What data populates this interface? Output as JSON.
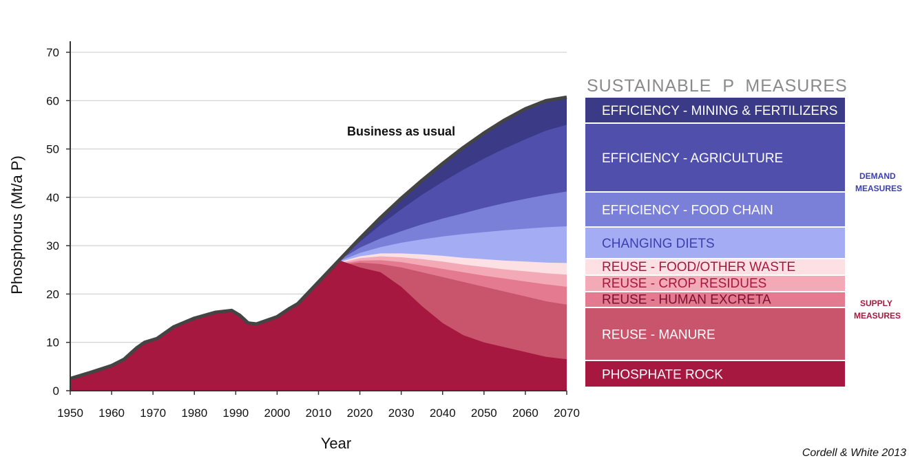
{
  "chart_data": {
    "type": "area",
    "title": "",
    "xlabel": "Year",
    "ylabel": "Phosphorus (Mt/a P)",
    "xlim": [
      1950,
      2070
    ],
    "ylim": [
      0,
      70
    ],
    "x_ticks": [
      1950,
      1960,
      1970,
      1980,
      1990,
      2000,
      2010,
      2020,
      2030,
      2040,
      2050,
      2060,
      2070
    ],
    "y_ticks": [
      0,
      10,
      20,
      30,
      40,
      50,
      60,
      70
    ],
    "grid": "horizontal",
    "annotation": "Business as usual",
    "legend_title": "SUSTAINABLE  P  MEASURES",
    "group_labels": {
      "demand": [
        "DEMAND",
        "MEASURES"
      ],
      "supply": [
        "SUPPLY",
        "MEASURES"
      ]
    },
    "source": "Cordell & White 2013",
    "business_as_usual": {
      "x": [
        1950,
        1955,
        1960,
        1963,
        1966,
        1968,
        1971,
        1975,
        1980,
        1985,
        1989,
        1991,
        1993,
        1995,
        2000,
        2003,
        2005,
        2010,
        2015,
        2020,
        2025,
        2030,
        2035,
        2040,
        2045,
        2050,
        2055,
        2060,
        2065,
        2070
      ],
      "y": [
        2.5,
        3.8,
        5.2,
        6.5,
        8.8,
        10.0,
        10.8,
        13.2,
        15.0,
        16.2,
        16.6,
        15.6,
        14.0,
        13.8,
        15.3,
        17.0,
        18.0,
        22.5,
        27.0,
        31.5,
        35.8,
        39.8,
        43.5,
        47.0,
        50.3,
        53.3,
        56.0,
        58.3,
        60.0,
        60.7
      ]
    },
    "scenario_x": [
      2015,
      2020,
      2025,
      2030,
      2035,
      2040,
      2045,
      2050,
      2055,
      2060,
      2065,
      2070
    ],
    "series": [
      {
        "name": "PHOSPHATE ROCK",
        "color": "#a6183f",
        "text_color": "#ffffff",
        "values": [
          25.5,
          25.5,
          24.5,
          21.5,
          17.5,
          14.0,
          11.5,
          10.0,
          9.0,
          8.0,
          7.0,
          6.5
        ]
      },
      {
        "name": "REUSE - MANURE",
        "color": "#c8556b",
        "text_color": "#ffffff",
        "values": [
          26.0,
          26.5,
          26.2,
          25.5,
          24.5,
          23.5,
          22.5,
          21.5,
          20.5,
          19.5,
          18.5,
          17.8
        ]
      },
      {
        "name": "REUSE - HUMAN EXCRETA",
        "color": "#e47a90",
        "text_color": "#7a1030",
        "values": [
          26.2,
          26.9,
          27.0,
          26.6,
          25.9,
          25.2,
          24.5,
          23.8,
          23.2,
          22.6,
          22.0,
          21.5
        ]
      },
      {
        "name": "REUSE - CROP RESIDUES",
        "color": "#f4a9b6",
        "text_color": "#a6183f",
        "values": [
          26.4,
          27.4,
          27.8,
          27.6,
          27.2,
          26.7,
          26.1,
          25.6,
          25.1,
          24.7,
          24.3,
          24.0
        ]
      },
      {
        "name": "REUSE - FOOD/OTHER WASTE",
        "color": "#fde0e4",
        "text_color": "#a6183f",
        "values": [
          26.6,
          27.8,
          28.4,
          28.4,
          28.2,
          27.9,
          27.5,
          27.2,
          26.9,
          26.7,
          26.5,
          26.4
        ]
      },
      {
        "name": "CHANGING DIETS",
        "color": "#a4acf4",
        "text_color": "#3b3fb0",
        "values": [
          26.8,
          28.5,
          29.7,
          30.6,
          31.3,
          31.9,
          32.4,
          32.8,
          33.2,
          33.5,
          33.8,
          34.0
        ]
      },
      {
        "name": "EFFICIENCY - FOOD CHAIN",
        "color": "#7a80d8",
        "text_color": "#ffffff",
        "values": [
          27.0,
          29.6,
          31.5,
          33.0,
          34.4,
          35.6,
          36.7,
          37.8,
          38.8,
          39.7,
          40.5,
          41.2
        ]
      },
      {
        "name": "EFFICIENCY - AGRICULTURE",
        "color": "#5050ac",
        "text_color": "#ffffff",
        "values": [
          27.0,
          30.8,
          34.3,
          37.5,
          40.5,
          43.2,
          45.7,
          48.0,
          50.1,
          52.0,
          53.8,
          55.0
        ]
      },
      {
        "name": "EFFICIENCY - MINING & FERTILIZERS",
        "color": "#3a3a86",
        "text_color": "#ffffff",
        "values": [
          27.0,
          31.5,
          35.8,
          39.8,
          43.5,
          47.0,
          50.3,
          53.3,
          56.0,
          58.3,
          60.0,
          60.7
        ]
      }
    ]
  }
}
